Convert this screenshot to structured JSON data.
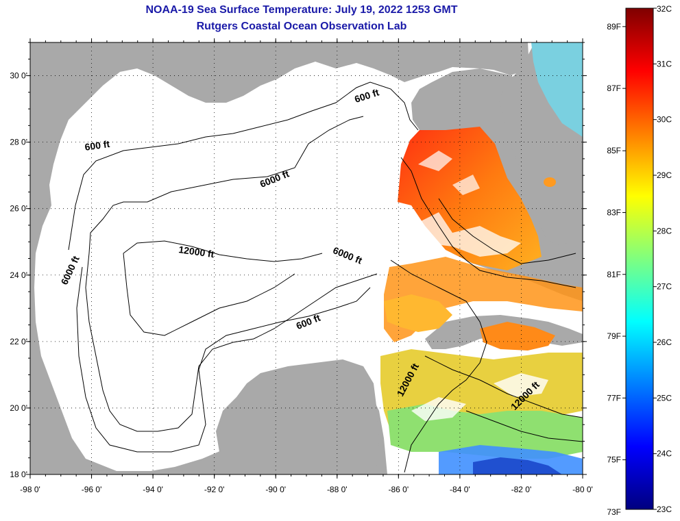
{
  "title": "NOAA-19 Sea Surface Temperature:  July 19, 2022 1253 GMT",
  "subtitle": "Rutgers Coastal Ocean Observation Lab",
  "map": {
    "lon_range": [
      -98,
      -80
    ],
    "lat_range": [
      18,
      31
    ],
    "lon_ticks": [
      {
        "value": -98,
        "label": "-98 0'"
      },
      {
        "value": -96,
        "label": "-96 0'"
      },
      {
        "value": -94,
        "label": "-94 0'"
      },
      {
        "value": -92,
        "label": "-92 0'"
      },
      {
        "value": -90,
        "label": "-90 0'"
      },
      {
        "value": -88,
        "label": "-88 0'"
      },
      {
        "value": -86,
        "label": "-86 0'"
      },
      {
        "value": -84,
        "label": "-84 0'"
      },
      {
        "value": -82,
        "label": "-82 0'"
      },
      {
        "value": -80,
        "label": "-80 0'"
      }
    ],
    "lat_ticks": [
      {
        "value": 18,
        "label": "18 0'"
      },
      {
        "value": 20,
        "label": "20 0'"
      },
      {
        "value": 22,
        "label": "22 0'"
      },
      {
        "value": 24,
        "label": "24 0'"
      },
      {
        "value": 26,
        "label": "26 0'"
      },
      {
        "value": 28,
        "label": "28 0'"
      },
      {
        "value": 30,
        "label": "30 0'"
      }
    ],
    "grid": "dotted",
    "land_color": "#a9a9a9",
    "no_data_color": "#ffffff",
    "contour_labels": [
      {
        "text": "600 ft",
        "lon": -87.0,
        "lat": 29.3,
        "angle": -18
      },
      {
        "text": "600 ft",
        "lon": -95.8,
        "lat": 27.8,
        "angle": -8
      },
      {
        "text": "6000 ft",
        "lon": -90.0,
        "lat": 26.8,
        "angle": -22
      },
      {
        "text": "12000 ft",
        "lon": -92.6,
        "lat": 24.6,
        "angle": 8
      },
      {
        "text": "6000 ft",
        "lon": -87.7,
        "lat": 24.5,
        "angle": 22
      },
      {
        "text": "6000 ft",
        "lon": -96.6,
        "lat": 24.1,
        "angle": -65
      },
      {
        "text": "600 ft",
        "lon": -88.9,
        "lat": 22.5,
        "angle": -22
      },
      {
        "text": "12000 ft",
        "lon": -85.6,
        "lat": 20.8,
        "angle": -62
      },
      {
        "text": "12000 ft",
        "lon": -81.8,
        "lat": 20.3,
        "angle": -45
      }
    ]
  },
  "colorbar": {
    "f_labels": [
      {
        "label": "89F",
        "value": 31.67
      },
      {
        "label": "87F",
        "value": 30.56
      },
      {
        "label": "85F",
        "value": 29.44
      },
      {
        "label": "83F",
        "value": 28.33
      },
      {
        "label": "81F",
        "value": 27.22
      },
      {
        "label": "79F",
        "value": 26.11
      },
      {
        "label": "77F",
        "value": 25.0
      },
      {
        "label": "75F",
        "value": 23.89
      },
      {
        "label": "73F",
        "value": 22.78
      }
    ],
    "c_labels": [
      {
        "label": "32C",
        "value": 32
      },
      {
        "label": "31C",
        "value": 31
      },
      {
        "label": "30C",
        "value": 30
      },
      {
        "label": "29C",
        "value": 29
      },
      {
        "label": "28C",
        "value": 28
      },
      {
        "label": "27C",
        "value": 27
      },
      {
        "label": "26C",
        "value": 26
      },
      {
        "label": "25C",
        "value": 25
      },
      {
        "label": "24C",
        "value": 24
      },
      {
        "label": "23C",
        "value": 23
      }
    ],
    "range_c": [
      23,
      32
    ],
    "colors": [
      "#00007f",
      "#0000ff",
      "#007fff",
      "#00ffff",
      "#7fff7f",
      "#ffff00",
      "#ff7f00",
      "#ff0000",
      "#7f0000"
    ]
  }
}
